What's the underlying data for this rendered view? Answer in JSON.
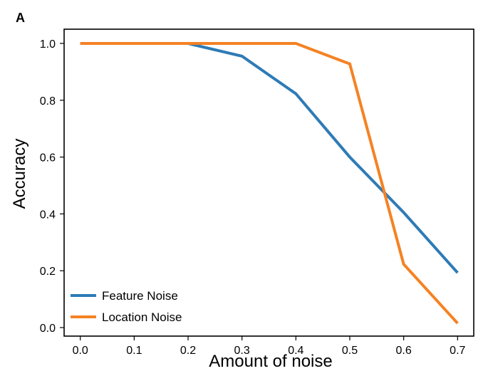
{
  "chart_data": {
    "type": "line",
    "panel_label": "A",
    "xlabel": "Amount of noise",
    "ylabel": "Accuracy",
    "x": [
      0.0,
      0.1,
      0.2,
      0.3,
      0.4,
      0.5,
      0.6,
      0.7
    ],
    "xlim": [
      -0.03,
      0.73
    ],
    "ylim": [
      -0.03,
      1.05
    ],
    "xticks": [
      "0.0",
      "0.1",
      "0.2",
      "0.3",
      "0.4",
      "0.5",
      "0.6",
      "0.7"
    ],
    "yticks": [
      "0.0",
      "0.2",
      "0.4",
      "0.6",
      "0.8",
      "1.0"
    ],
    "grid": false,
    "legend_position": "bottom-left",
    "series": [
      {
        "name": "Feature Noise",
        "color": "#2e7bb6",
        "values": [
          1.0,
          1.0,
          1.0,
          0.955,
          0.823,
          0.6,
          0.405,
          0.193
        ]
      },
      {
        "name": "Location Noise",
        "color": "#f58223",
        "values": [
          1.0,
          1.0,
          1.0,
          1.0,
          1.0,
          0.928,
          0.223,
          0.015
        ]
      }
    ]
  }
}
